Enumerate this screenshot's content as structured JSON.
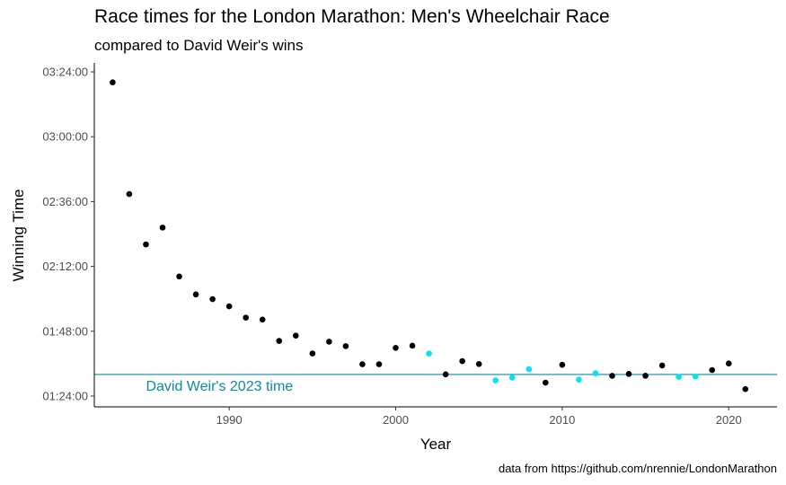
{
  "title": "Race times for the London Marathon: Men's Wheelchair Race",
  "subtitle": "compared to David Weir's wins",
  "caption": "data from https://github.com/nrennie/LondonMarathon",
  "colors": {
    "winner": "#000000",
    "weir_win": "#00e5ee",
    "reference_line": "#0b8b9e",
    "annotation": "#0b8b9e"
  },
  "chart_data": {
    "type": "scatter",
    "xlabel": "Year",
    "ylabel": "Winning Time",
    "xlim": [
      1981.9,
      2022.9
    ],
    "ylim": [
      "01:20:00",
      "03:27:20"
    ],
    "x_ticks": [
      1990,
      2000,
      2010,
      2020
    ],
    "y_ticks": [
      "01:24:00",
      "01:48:00",
      "02:12:00",
      "02:36:00",
      "03:00:00",
      "03:24:00"
    ],
    "grid": false,
    "reference_line": {
      "y": "01:32:00",
      "label": "David Weir's 2023 time"
    },
    "series": [
      {
        "name": "",
        "color_key": "winner",
        "points": [
          {
            "x": 1983,
            "y": "03:20:07"
          },
          {
            "x": 1984,
            "y": "02:38:47"
          },
          {
            "x": 1985,
            "y": "02:20:08"
          },
          {
            "x": 1986,
            "y": "02:26:22"
          },
          {
            "x": 1987,
            "y": "02:08:16"
          },
          {
            "x": 1988,
            "y": "02:01:37"
          },
          {
            "x": 1989,
            "y": "01:59:53"
          },
          {
            "x": 1990,
            "y": "01:57:13"
          },
          {
            "x": 1991,
            "y": "01:53:02"
          },
          {
            "x": 1992,
            "y": "01:52:18"
          },
          {
            "x": 1993,
            "y": "01:44:24"
          },
          {
            "x": 1994,
            "y": "01:46:22"
          },
          {
            "x": 1995,
            "y": "01:39:45"
          },
          {
            "x": 1996,
            "y": "01:44:07"
          },
          {
            "x": 1997,
            "y": "01:42:29"
          },
          {
            "x": 1998,
            "y": "01:35:46"
          },
          {
            "x": 1999,
            "y": "01:35:46"
          },
          {
            "x": 2000,
            "y": "01:41:50"
          },
          {
            "x": 2001,
            "y": "01:42:37"
          },
          {
            "x": 2003,
            "y": "01:32:02"
          },
          {
            "x": 2004,
            "y": "01:36:56"
          },
          {
            "x": 2005,
            "y": "01:35:51"
          },
          {
            "x": 2009,
            "y": "01:28:57"
          },
          {
            "x": 2010,
            "y": "01:35:34"
          },
          {
            "x": 2013,
            "y": "01:31:29"
          },
          {
            "x": 2014,
            "y": "01:32:11"
          },
          {
            "x": 2015,
            "y": "01:31:31"
          },
          {
            "x": 2016,
            "y": "01:35:19"
          },
          {
            "x": 2019,
            "y": "01:33:38"
          },
          {
            "x": 2020,
            "y": "01:36:04"
          },
          {
            "x": 2021,
            "y": "01:26:36"
          }
        ]
      },
      {
        "name": "",
        "color_key": "weir_win",
        "points": [
          {
            "x": 2002,
            "y": "01:39:44"
          },
          {
            "x": 2006,
            "y": "01:29:48"
          },
          {
            "x": 2007,
            "y": "01:30:49"
          },
          {
            "x": 2008,
            "y": "01:33:56"
          },
          {
            "x": 2011,
            "y": "01:30:05"
          },
          {
            "x": 2012,
            "y": "01:32:26"
          },
          {
            "x": 2017,
            "y": "01:31:06"
          },
          {
            "x": 2018,
            "y": "01:31:15"
          }
        ]
      }
    ]
  }
}
